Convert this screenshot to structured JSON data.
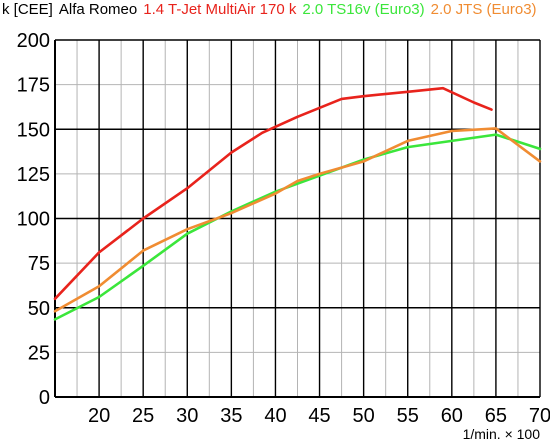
{
  "header": {
    "unit": "k [CEE]",
    "brand": "Alfa Romeo"
  },
  "chart_data": {
    "type": "line",
    "xlabel": "1/min. × 100",
    "ylabel": "k [CEE]",
    "xlim": [
      15,
      70
    ],
    "ylim": [
      0,
      200
    ],
    "x_ticks": [
      20,
      25,
      30,
      35,
      40,
      45,
      50,
      55,
      60,
      65,
      70
    ],
    "y_ticks": [
      0,
      25,
      50,
      75,
      100,
      125,
      150,
      175,
      200
    ],
    "x_grid": [
      20,
      25,
      30,
      35,
      40,
      45,
      50,
      55,
      60,
      65,
      70
    ],
    "x_minor_grid": [
      17.5,
      22.5,
      27.5,
      32.5,
      37.5,
      42.5,
      47.5,
      52.5,
      57.5,
      62.5,
      67.5
    ],
    "y_grid": [
      50,
      100,
      150,
      200
    ],
    "y_minor_grid": [
      25,
      75,
      125,
      175
    ],
    "grid": true,
    "series": [
      {
        "name": "1.4 T-Jet MultiAir 170 k",
        "color": "#e8231c",
        "x": [
          15,
          20,
          25,
          30,
          35,
          38.5,
          42.5,
          47.5,
          50,
          55,
          59,
          62.5,
          64.5
        ],
        "y": [
          55,
          81,
          100,
          117,
          137,
          148,
          157,
          167,
          168.5,
          171,
          173,
          165,
          161
        ]
      },
      {
        "name": "2.0 TS16v (Euro3)",
        "color": "#3be63b",
        "x": [
          15,
          20,
          25,
          30,
          35,
          40,
          45,
          50,
          55,
          60,
          65,
          70
        ],
        "y": [
          43.5,
          56,
          73.5,
          91.5,
          104,
          115,
          124,
          133,
          140,
          143.5,
          147,
          139
        ]
      },
      {
        "name": "2.0 JTS (Euro3)",
        "color": "#f08c32",
        "x": [
          15,
          20,
          25,
          30,
          35,
          40,
          42.5,
          45,
          50,
          55,
          60,
          65,
          70
        ],
        "y": [
          48,
          62,
          82,
          94,
          103,
          114,
          121,
          125,
          132,
          143.5,
          149,
          150.5,
          132
        ]
      }
    ]
  }
}
